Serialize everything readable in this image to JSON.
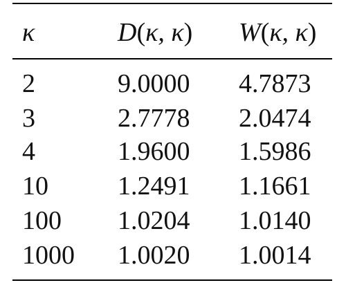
{
  "table": {
    "headers": {
      "kappa": "κ",
      "d_name": "D",
      "w_name": "W",
      "args": "κ, κ",
      "open": "(",
      "close": ")"
    },
    "rows": [
      {
        "kappa": "2",
        "d": "9.0000",
        "w": "4.7873"
      },
      {
        "kappa": "3",
        "d": "2.7778",
        "w": "2.0474"
      },
      {
        "kappa": "4",
        "d": "1.9600",
        "w": "1.5986"
      },
      {
        "kappa": "10",
        "d": "1.2491",
        "w": "1.1661"
      },
      {
        "kappa": "100",
        "d": "1.0204",
        "w": "1.0140"
      },
      {
        "kappa": "1000",
        "d": "1.0020",
        "w": "1.0014"
      }
    ]
  }
}
